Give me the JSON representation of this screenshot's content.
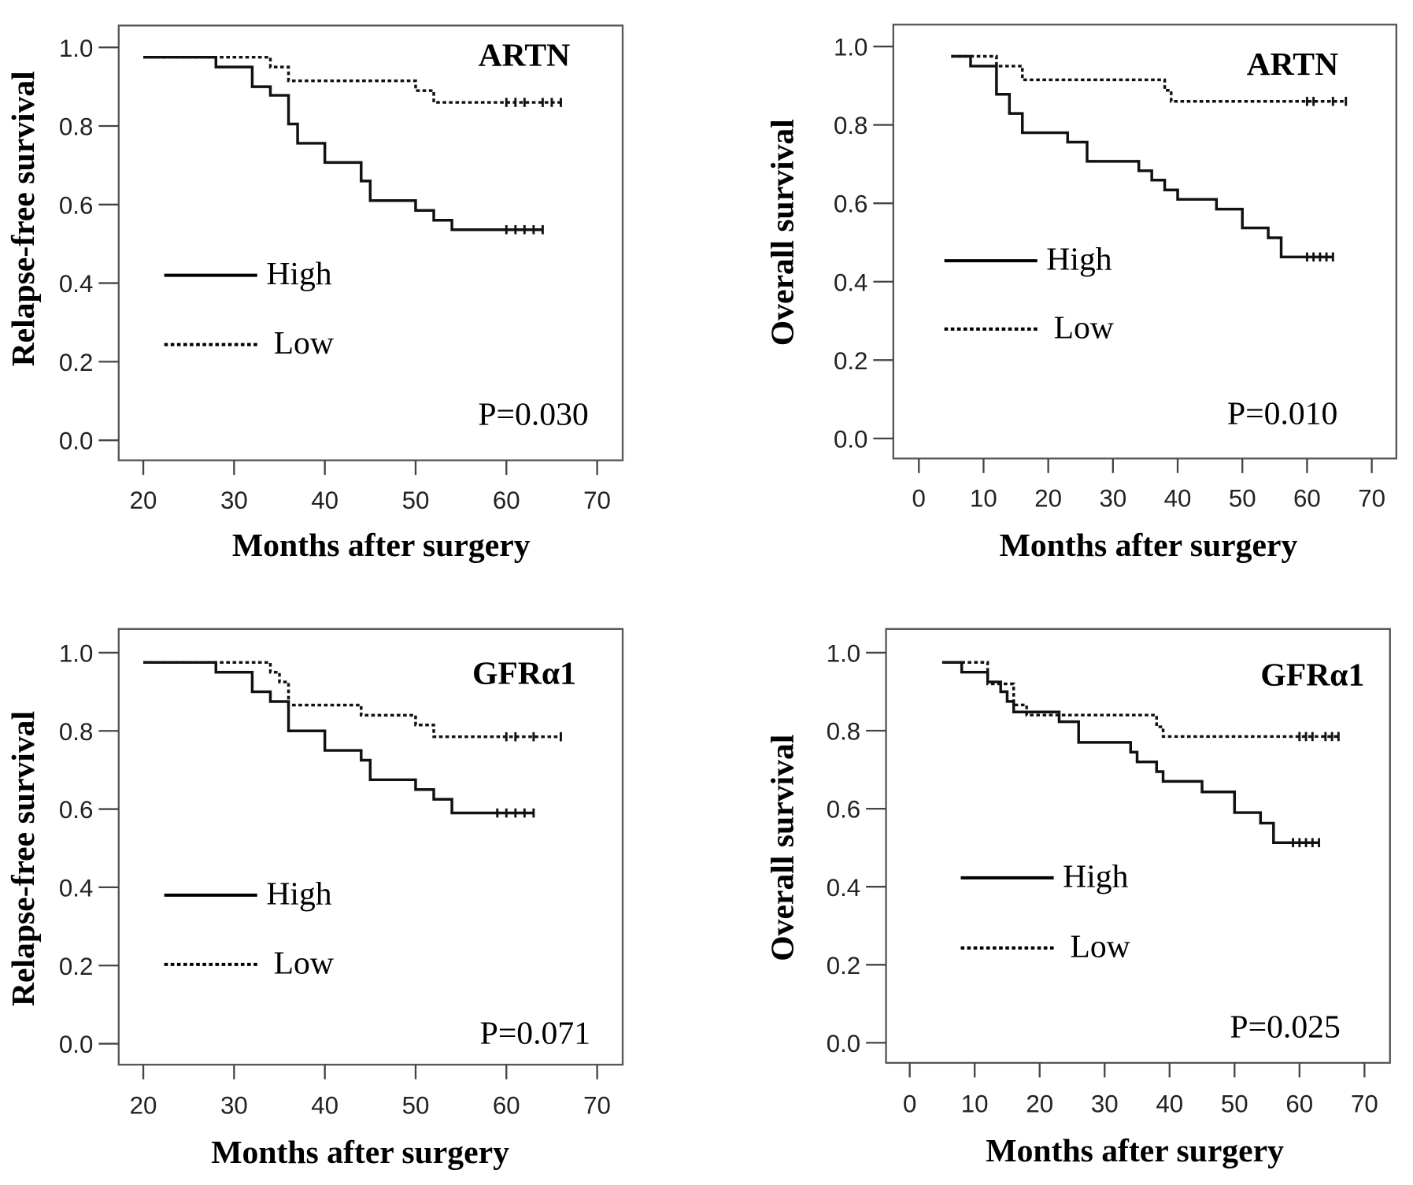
{
  "chart_data": [
    {
      "type": "line",
      "subtype": "kaplan-meier",
      "title": "ARTN",
      "xlabel": "Months after surgery",
      "ylabel": "Relapse-free survival",
      "xlim": [
        20,
        70
      ],
      "ylim": [
        0,
        1.0
      ],
      "xticks": [
        "20",
        "30",
        "40",
        "50",
        "60",
        "70"
      ],
      "yticks": [
        "0.0",
        "0.2",
        "0.4",
        "0.6",
        "0.8",
        "1.0"
      ],
      "legend": [
        "High",
        "Low"
      ],
      "legend_position": "center-left",
      "p_value": "P=0.030",
      "series": [
        {
          "name": "High",
          "steps": [
            [
              20,
              0.975
            ],
            [
              28,
              0.95
            ],
            [
              32,
              0.9
            ],
            [
              34,
              0.878
            ],
            [
              36,
              0.805
            ],
            [
              37,
              0.756
            ],
            [
              40,
              0.707
            ],
            [
              44,
              0.66
            ],
            [
              45,
              0.61
            ],
            [
              50,
              0.585
            ],
            [
              52,
              0.56
            ],
            [
              54,
              0.536
            ]
          ],
          "end": 64,
          "censored": [
            60,
            61,
            62,
            63,
            64
          ]
        },
        {
          "name": "Low",
          "steps": [
            [
              20,
              0.975
            ],
            [
              34,
              0.95
            ],
            [
              36,
              0.915
            ],
            [
              50,
              0.89
            ],
            [
              52,
              0.86
            ]
          ],
          "end": 66,
          "censored": [
            60,
            61,
            62,
            64,
            65,
            66
          ]
        }
      ]
    },
    {
      "type": "line",
      "subtype": "kaplan-meier",
      "title": "ARTN",
      "xlabel": "Months after surgery",
      "ylabel": "Overall survival",
      "xlim": [
        0,
        70
      ],
      "ylim": [
        0,
        1.0
      ],
      "xticks": [
        "0",
        "10",
        "20",
        "30",
        "40",
        "50",
        "60",
        "70"
      ],
      "yticks": [
        "0.0",
        "0.2",
        "0.4",
        "0.6",
        "0.8",
        "1.0"
      ],
      "legend": [
        "High",
        "Low"
      ],
      "legend_position": "center-left",
      "p_value": "P=0.010",
      "series": [
        {
          "name": "High",
          "steps": [
            [
              5,
              0.975
            ],
            [
              8,
              0.95
            ],
            [
              12,
              0.878
            ],
            [
              14,
              0.829
            ],
            [
              16,
              0.78
            ],
            [
              23,
              0.756
            ],
            [
              26,
              0.707
            ],
            [
              34,
              0.683
            ],
            [
              36,
              0.659
            ],
            [
              38,
              0.634
            ],
            [
              40,
              0.61
            ],
            [
              46,
              0.585
            ],
            [
              50,
              0.537
            ],
            [
              54,
              0.512
            ],
            [
              56,
              0.463
            ]
          ],
          "end": 64,
          "censored": [
            60,
            61,
            62,
            63,
            64
          ]
        },
        {
          "name": "Low",
          "steps": [
            [
              5,
              0.975
            ],
            [
              12,
              0.95
            ],
            [
              16,
              0.915
            ],
            [
              38,
              0.888
            ],
            [
              39,
              0.86
            ]
          ],
          "end": 66,
          "censored": [
            60,
            61,
            64,
            66
          ]
        }
      ]
    },
    {
      "type": "line",
      "subtype": "kaplan-meier",
      "title": "GFRα1",
      "xlabel": "Months after surgery",
      "ylabel": "Relapse-free survival",
      "xlim": [
        20,
        70
      ],
      "ylim": [
        0,
        1.0
      ],
      "xticks": [
        "20",
        "30",
        "40",
        "50",
        "60",
        "70"
      ],
      "yticks": [
        "0.0",
        "0.2",
        "0.4",
        "0.6",
        "0.8",
        "1.0"
      ],
      "legend": [
        "High",
        "Low"
      ],
      "legend_position": "center-left",
      "p_value": "P=0.071",
      "series": [
        {
          "name": "High",
          "steps": [
            [
              20,
              0.975
            ],
            [
              28,
              0.95
            ],
            [
              32,
              0.9
            ],
            [
              34,
              0.875
            ],
            [
              36,
              0.8
            ],
            [
              40,
              0.75
            ],
            [
              44,
              0.725
            ],
            [
              45,
              0.675
            ],
            [
              50,
              0.65
            ],
            [
              52,
              0.625
            ],
            [
              54,
              0.59
            ]
          ],
          "end": 63,
          "censored": [
            59,
            60,
            61,
            62,
            63
          ]
        },
        {
          "name": "Low",
          "steps": [
            [
              20,
              0.975
            ],
            [
              34,
              0.95
            ],
            [
              35,
              0.925
            ],
            [
              36,
              0.866
            ],
            [
              44,
              0.84
            ],
            [
              50,
              0.815
            ],
            [
              52,
              0.785
            ]
          ],
          "end": 66,
          "censored": [
            60,
            61,
            63,
            66
          ]
        }
      ]
    },
    {
      "type": "line",
      "subtype": "kaplan-meier",
      "title": "GFRα1",
      "xlabel": "Months after surgery",
      "ylabel": "Overall survival",
      "xlim": [
        0,
        70
      ],
      "ylim": [
        0,
        1.0
      ],
      "xticks": [
        "0",
        "10",
        "20",
        "30",
        "40",
        "50",
        "60",
        "70"
      ],
      "yticks": [
        "0.0",
        "0.2",
        "0.4",
        "0.6",
        "0.8",
        "1.0"
      ],
      "legend": [
        "High",
        "Low"
      ],
      "legend_position": "center-left",
      "p_value": "P=0.025",
      "series": [
        {
          "name": "High",
          "steps": [
            [
              5,
              0.975
            ],
            [
              8,
              0.95
            ],
            [
              12,
              0.925
            ],
            [
              14,
              0.9
            ],
            [
              15,
              0.875
            ],
            [
              16,
              0.848
            ],
            [
              23,
              0.823
            ],
            [
              26,
              0.77
            ],
            [
              34,
              0.745
            ],
            [
              35,
              0.72
            ],
            [
              38,
              0.695
            ],
            [
              39,
              0.67
            ],
            [
              45,
              0.643
            ],
            [
              50,
              0.59
            ],
            [
              54,
              0.563
            ],
            [
              56,
              0.513
            ]
          ],
          "end": 63,
          "censored": [
            59,
            60,
            61,
            62,
            63
          ]
        },
        {
          "name": "Low",
          "steps": [
            [
              5,
              0.975
            ],
            [
              12,
              0.92
            ],
            [
              16,
              0.866
            ],
            [
              18,
              0.84
            ],
            [
              38,
              0.81
            ],
            [
              39,
              0.785
            ]
          ],
          "end": 66,
          "censored": [
            60,
            61,
            62,
            64,
            65,
            66
          ]
        }
      ]
    }
  ]
}
